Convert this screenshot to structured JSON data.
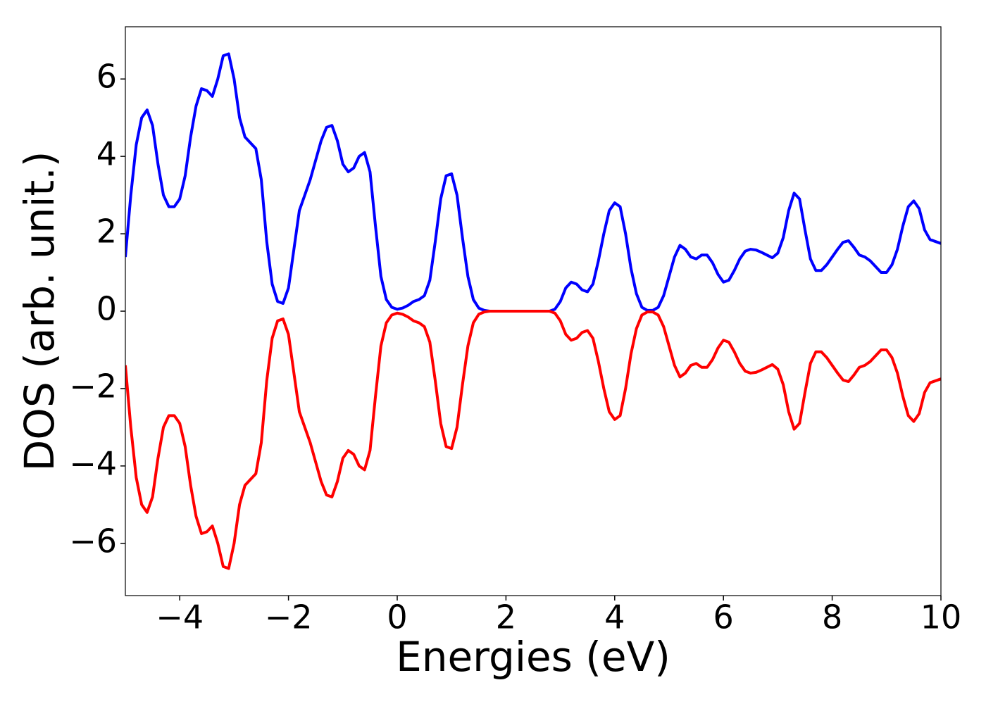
{
  "chart_data": {
    "type": "line",
    "xlabel": "Energies (eV)",
    "ylabel": "DOS (arb. unit.)",
    "x": [
      -5,
      -4.9,
      -4.8,
      -4.7,
      -4.6,
      -4.5,
      -4.4,
      -4.3,
      -4.2,
      -4.1,
      -4,
      -3.9,
      -3.8,
      -3.7,
      -3.6,
      -3.5,
      -3.4,
      -3.3,
      -3.2,
      -3.1,
      -3,
      -2.9,
      -2.8,
      -2.7,
      -2.6,
      -2.5,
      -2.4,
      -2.3,
      -2.2,
      -2.1,
      -2,
      -1.9,
      -1.8,
      -1.7,
      -1.6,
      -1.5,
      -1.4,
      -1.3,
      -1.2,
      -1.1,
      -1,
      -0.9,
      -0.8,
      -0.7,
      -0.6,
      -0.5,
      -0.4,
      -0.3,
      -0.2,
      -0.1,
      0,
      0.1,
      0.2,
      0.3,
      0.4,
      0.5,
      0.6,
      0.7,
      0.8,
      0.9,
      1,
      1.1,
      1.2,
      1.3,
      1.4,
      1.5,
      1.6,
      1.7,
      2.8,
      2.9,
      3,
      3.1,
      3.2,
      3.3,
      3.4,
      3.5,
      3.6,
      3.7,
      3.8,
      3.9,
      4,
      4.1,
      4.2,
      4.3,
      4.4,
      4.5,
      4.6,
      4.7,
      4.8,
      4.9,
      5,
      5.1,
      5.2,
      5.3,
      5.4,
      5.5,
      5.6,
      5.7,
      5.8,
      5.9,
      6,
      6.1,
      6.2,
      6.3,
      6.4,
      6.5,
      6.6,
      6.7,
      6.8,
      6.9,
      7,
      7.1,
      7.2,
      7.3,
      7.4,
      7.5,
      7.6,
      7.7,
      7.8,
      7.9,
      8,
      8.1,
      8.2,
      8.3,
      8.4,
      8.5,
      8.6,
      8.7,
      8.8,
      8.9,
      9,
      9.1,
      9.2,
      9.3,
      9.4,
      9.5,
      9.6,
      9.7,
      9.8,
      9.9,
      10
    ],
    "series": [
      {
        "color": "#0000ff",
        "values": [
          1.4,
          3.0,
          4.3,
          5.0,
          5.2,
          4.8,
          3.8,
          3.0,
          2.7,
          2.7,
          2.9,
          3.5,
          4.5,
          5.3,
          5.75,
          5.7,
          5.55,
          6.0,
          6.6,
          6.65,
          6.0,
          5.0,
          4.5,
          4.35,
          4.2,
          3.4,
          1.8,
          0.7,
          0.25,
          0.2,
          0.6,
          1.6,
          2.6,
          3.0,
          3.4,
          3.9,
          4.4,
          4.75,
          4.8,
          4.4,
          3.8,
          3.6,
          3.7,
          4.0,
          4.1,
          3.6,
          2.2,
          0.9,
          0.3,
          0.1,
          0.05,
          0.08,
          0.15,
          0.25,
          0.3,
          0.4,
          0.8,
          1.8,
          2.9,
          3.5,
          3.55,
          3.0,
          1.9,
          0.9,
          0.3,
          0.08,
          0.02,
          0,
          0,
          0.05,
          0.25,
          0.6,
          0.75,
          0.7,
          0.55,
          0.5,
          0.7,
          1.3,
          2.0,
          2.6,
          2.8,
          2.7,
          2.0,
          1.1,
          0.45,
          0.1,
          0.02,
          0.02,
          0.1,
          0.4,
          0.9,
          1.4,
          1.7,
          1.6,
          1.4,
          1.35,
          1.45,
          1.45,
          1.25,
          0.95,
          0.75,
          0.8,
          1.05,
          1.35,
          1.55,
          1.6,
          1.58,
          1.52,
          1.45,
          1.38,
          1.5,
          1.9,
          2.6,
          3.05,
          2.9,
          2.1,
          1.35,
          1.05,
          1.05,
          1.2,
          1.4,
          1.6,
          1.78,
          1.82,
          1.65,
          1.45,
          1.4,
          1.3,
          1.15,
          1.0,
          1.0,
          1.2,
          1.6,
          2.2,
          2.7,
          2.85,
          2.65,
          2.1,
          1.85,
          1.8,
          1.75
        ]
      },
      {
        "color": "#ff0000",
        "values": [
          -1.4,
          -3.0,
          -4.3,
          -5.0,
          -5.2,
          -4.8,
          -3.8,
          -3.0,
          -2.7,
          -2.7,
          -2.9,
          -3.5,
          -4.5,
          -5.3,
          -5.75,
          -5.7,
          -5.55,
          -6.0,
          -6.6,
          -6.65,
          -6.0,
          -5.0,
          -4.5,
          -4.35,
          -4.2,
          -3.4,
          -1.8,
          -0.7,
          -0.25,
          -0.2,
          -0.6,
          -1.6,
          -2.6,
          -3.0,
          -3.4,
          -3.9,
          -4.4,
          -4.75,
          -4.8,
          -4.4,
          -3.8,
          -3.6,
          -3.7,
          -4.0,
          -4.1,
          -3.6,
          -2.2,
          -0.9,
          -0.3,
          -0.1,
          -0.05,
          -0.08,
          -0.15,
          -0.25,
          -0.3,
          -0.4,
          -0.8,
          -1.8,
          -2.9,
          -3.5,
          -3.55,
          -3.0,
          -1.9,
          -0.9,
          -0.3,
          -0.08,
          -0.02,
          0,
          0,
          -0.05,
          -0.25,
          -0.6,
          -0.75,
          -0.7,
          -0.55,
          -0.5,
          -0.7,
          -1.3,
          -2.0,
          -2.6,
          -2.8,
          -2.7,
          -2.0,
          -1.1,
          -0.45,
          -0.1,
          -0.02,
          -0.02,
          -0.1,
          -0.4,
          -0.9,
          -1.4,
          -1.7,
          -1.6,
          -1.4,
          -1.35,
          -1.45,
          -1.45,
          -1.25,
          -0.95,
          -0.75,
          -0.8,
          -1.05,
          -1.35,
          -1.55,
          -1.6,
          -1.58,
          -1.52,
          -1.45,
          -1.38,
          -1.5,
          -1.9,
          -2.6,
          -3.05,
          -2.9,
          -2.1,
          -1.35,
          -1.05,
          -1.05,
          -1.2,
          -1.4,
          -1.6,
          -1.78,
          -1.82,
          -1.65,
          -1.45,
          -1.4,
          -1.3,
          -1.15,
          -1.0,
          -1.0,
          -1.2,
          -1.6,
          -2.2,
          -2.7,
          -2.85,
          -2.65,
          -2.1,
          -1.85,
          -1.8,
          -1.75
        ]
      }
    ],
    "xlim": [
      -5,
      10
    ],
    "xticks": [
      {
        "value": -4,
        "label": "−4"
      },
      {
        "value": -2,
        "label": "−2"
      },
      0,
      2,
      4,
      6,
      8,
      10
    ],
    "ylim": [
      -7.35,
      7.35
    ],
    "yticks": [
      {
        "value": -6,
        "label": "−6"
      },
      {
        "value": -4,
        "label": "−4"
      },
      {
        "value": -2,
        "label": "−2"
      },
      0,
      2,
      4,
      6
    ],
    "grid": false
  }
}
